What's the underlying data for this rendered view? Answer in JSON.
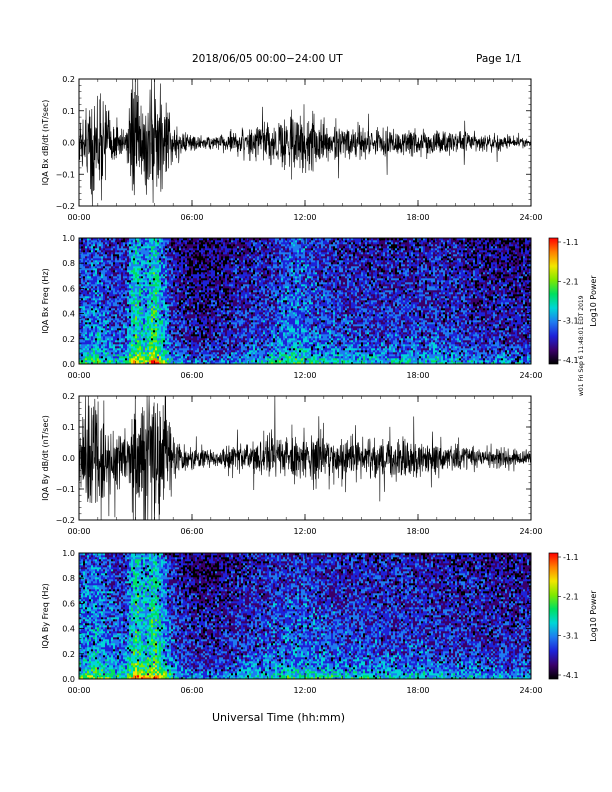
{
  "header": {
    "date_range": "2018/06/05  00:00−24:00 UT",
    "page": "Page 1/1"
  },
  "footer": {
    "xlabel": "Universal Time (hh:mm)"
  },
  "side_note": "w01 Fri Sep 6 11:48:01 EDT 2019",
  "colorbar": {
    "label": "Log10 Power",
    "ticks": [
      "-1.1",
      "-2.1",
      "-3.1",
      "-4.1"
    ],
    "colors": [
      "#000000",
      "#3a006a",
      "#1e22d8",
      "#1e7cf0",
      "#00d6d6",
      "#00e060",
      "#7fe800",
      "#f2e600",
      "#ff8000",
      "#ff0000"
    ]
  },
  "chart_data": [
    {
      "type": "line",
      "panel": "bx-time-series",
      "ylabel": "IQA Bx dB/dt (nT/sec)",
      "x_ticks": [
        "00:00",
        "06:00",
        "12:00",
        "18:00",
        "24:00"
      ],
      "y_ticks": [
        "0.2",
        "0.1",
        "0.0",
        "−0.1",
        "−0.2"
      ],
      "xlim": [
        0,
        24
      ],
      "ylim": [
        -0.2,
        0.2
      ],
      "x": [
        0,
        0.5,
        1,
        1.5,
        2,
        2.5,
        3,
        3.5,
        4,
        4.5,
        5,
        5.5,
        6,
        6.5,
        7,
        7.5,
        8,
        8.5,
        9,
        9.5,
        10,
        10.5,
        11,
        11.5,
        12,
        12.5,
        13,
        13.5,
        14,
        14.5,
        15,
        15.5,
        16,
        16.5,
        17,
        17.5,
        18,
        18.5,
        19,
        19.5,
        20,
        20.5,
        21,
        21.5,
        22,
        22.5,
        23,
        23.5,
        24
      ],
      "amplitude": [
        0.04,
        0.15,
        0.2,
        0.08,
        0.06,
        0.04,
        0.2,
        0.12,
        0.2,
        0.14,
        0.05,
        0.03,
        0.025,
        0.02,
        0.02,
        0.025,
        0.03,
        0.035,
        0.045,
        0.05,
        0.06,
        0.07,
        0.09,
        0.1,
        0.09,
        0.07,
        0.06,
        0.055,
        0.05,
        0.05,
        0.045,
        0.045,
        0.04,
        0.04,
        0.04,
        0.04,
        0.04,
        0.035,
        0.035,
        0.035,
        0.03,
        0.03,
        0.025,
        0.025,
        0.02,
        0.02,
        0.015,
        0.015,
        0.012
      ]
    },
    {
      "type": "heatmap",
      "panel": "bx-spectrogram",
      "ylabel": "IQA Bx Freq (Hz)",
      "x_ticks": [
        "00:00",
        "06:00",
        "12:00",
        "18:00",
        "24:00"
      ],
      "y_ticks": [
        "1.0",
        "0.8",
        "0.6",
        "0.4",
        "0.2",
        "0.0"
      ],
      "xlim": [
        0,
        24
      ],
      "ylim": [
        0,
        1
      ],
      "zlim": [
        -4.1,
        -1.1
      ],
      "activity": [
        0.45,
        0.55,
        0.6,
        0.5,
        0.45,
        0.45,
        0.85,
        0.65,
        0.9,
        0.6,
        0.4,
        0.35,
        0.3,
        0.3,
        0.3,
        0.32,
        0.35,
        0.38,
        0.4,
        0.42,
        0.45,
        0.5,
        0.55,
        0.58,
        0.55,
        0.5,
        0.48,
        0.45,
        0.45,
        0.44,
        0.43,
        0.42,
        0.42,
        0.42,
        0.42,
        0.42,
        0.42,
        0.42,
        0.45,
        0.4,
        0.45,
        0.38,
        0.36,
        0.35,
        0.35,
        0.34,
        0.34,
        0.34,
        0.34
      ]
    },
    {
      "type": "line",
      "panel": "by-time-series",
      "ylabel": "IQA By dB/dt (nT/sec)",
      "x_ticks": [
        "00:00",
        "06:00",
        "12:00",
        "18:00",
        "24:00"
      ],
      "y_ticks": [
        "0.2",
        "0.1",
        "0.0",
        "−0.1",
        "−0.2"
      ],
      "xlim": [
        0,
        24
      ],
      "ylim": [
        -0.2,
        0.2
      ],
      "x": [
        0,
        0.5,
        1,
        1.5,
        2,
        2.5,
        3,
        3.5,
        4,
        4.5,
        5,
        5.5,
        6,
        6.5,
        7,
        7.5,
        8,
        8.5,
        9,
        9.5,
        10,
        10.5,
        11,
        11.5,
        12,
        12.5,
        13,
        13.5,
        14,
        14.5,
        15,
        15.5,
        16,
        16.5,
        17,
        17.5,
        18,
        18.5,
        19,
        19.5,
        20,
        20.5,
        21,
        21.5,
        22,
        22.5,
        23,
        23.5,
        24
      ],
      "amplitude": [
        0.08,
        0.2,
        0.2,
        0.1,
        0.1,
        0.08,
        0.2,
        0.2,
        0.2,
        0.2,
        0.08,
        0.04,
        0.03,
        0.03,
        0.03,
        0.035,
        0.04,
        0.045,
        0.05,
        0.055,
        0.06,
        0.07,
        0.07,
        0.075,
        0.075,
        0.07,
        0.07,
        0.065,
        0.07,
        0.065,
        0.06,
        0.06,
        0.07,
        0.06,
        0.06,
        0.055,
        0.06,
        0.05,
        0.05,
        0.045,
        0.045,
        0.04,
        0.04,
        0.035,
        0.035,
        0.03,
        0.03,
        0.025,
        0.02
      ]
    },
    {
      "type": "heatmap",
      "panel": "by-spectrogram",
      "ylabel": "IQA By Freq (Hz)",
      "x_ticks": [
        "00:00",
        "06:00",
        "12:00",
        "18:00",
        "24:00"
      ],
      "y_ticks": [
        "1.0",
        "0.8",
        "0.6",
        "0.4",
        "0.2",
        "0.0"
      ],
      "xlim": [
        0,
        24
      ],
      "ylim": [
        0,
        1
      ],
      "zlim": [
        -4.1,
        -1.1
      ],
      "activity": [
        0.55,
        0.62,
        0.65,
        0.55,
        0.5,
        0.5,
        0.9,
        0.7,
        0.9,
        0.65,
        0.45,
        0.38,
        0.33,
        0.33,
        0.33,
        0.35,
        0.38,
        0.4,
        0.42,
        0.44,
        0.46,
        0.48,
        0.5,
        0.52,
        0.52,
        0.5,
        0.48,
        0.47,
        0.46,
        0.45,
        0.45,
        0.44,
        0.44,
        0.44,
        0.43,
        0.43,
        0.43,
        0.42,
        0.42,
        0.41,
        0.41,
        0.4,
        0.4,
        0.39,
        0.38,
        0.38,
        0.37,
        0.37,
        0.36
      ]
    }
  ]
}
